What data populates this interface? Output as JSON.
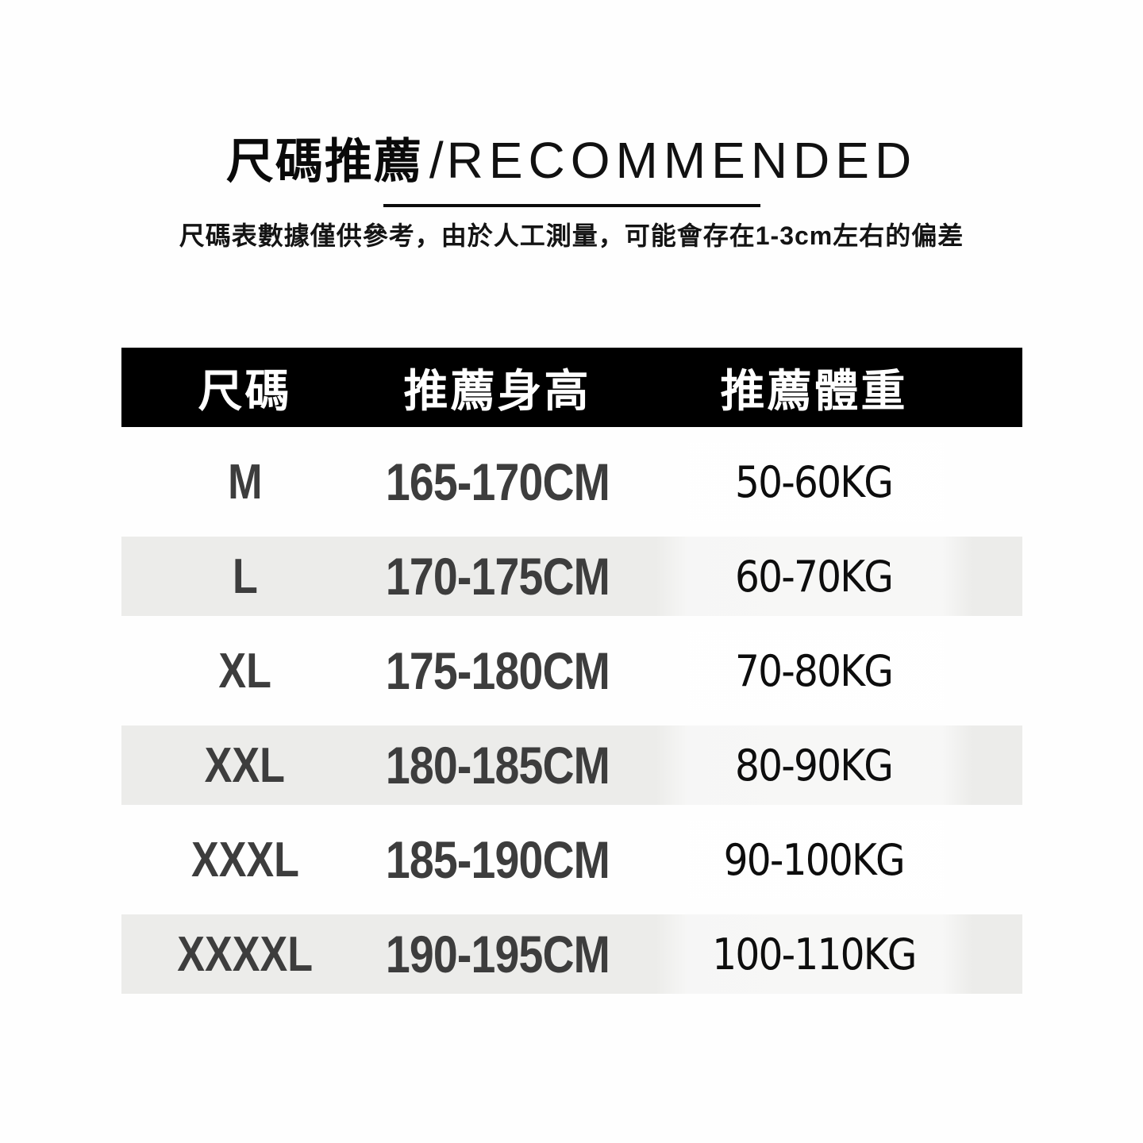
{
  "title": {
    "cjk": "尺碼推薦",
    "slash": "/",
    "en": "RECOMMENDED"
  },
  "subtitle": "尺碼表數據僅供參考，由於人工測量，可能會存在1-3cm左右的偏差",
  "table": {
    "columns": [
      "尺碼",
      "推薦身高",
      "推薦體重"
    ],
    "rows": [
      {
        "size": "M",
        "height": "165-170CM",
        "weight": "50-60KG"
      },
      {
        "size": "L",
        "height": "170-175CM",
        "weight": "60-70KG"
      },
      {
        "size": "XL",
        "height": "175-180CM",
        "weight": "70-80KG"
      },
      {
        "size": "XXL",
        "height": "180-185CM",
        "weight": "80-90KG"
      },
      {
        "size": "XXXL",
        "height": "185-190CM",
        "weight": "90-100KG"
      },
      {
        "size": "XXXXL",
        "height": "190-195CM",
        "weight": "100-110KG"
      }
    ],
    "colors": {
      "header_bg": "#000000",
      "header_text": "#ffffff",
      "alt_row_bg": "#ececea",
      "primary_text": "#3d3d3d",
      "weight_text": "#0d0d0d",
      "underline": "#0c0c0c",
      "page_bg": "#fefefe"
    }
  },
  "chart_data": {
    "type": "table",
    "title": "尺碼推薦/RECOMMENDED",
    "columns": [
      "尺碼",
      "推薦身高",
      "推薦體重"
    ],
    "rows": [
      [
        "M",
        "165-170CM",
        "50-60KG"
      ],
      [
        "L",
        "170-175CM",
        "60-70KG"
      ],
      [
        "XL",
        "175-180CM",
        "70-80KG"
      ],
      [
        "XXL",
        "180-185CM",
        "80-90KG"
      ],
      [
        "XXXL",
        "185-190CM",
        "90-100KG"
      ],
      [
        "XXXXL",
        "190-195CM",
        "100-110KG"
      ]
    ]
  }
}
